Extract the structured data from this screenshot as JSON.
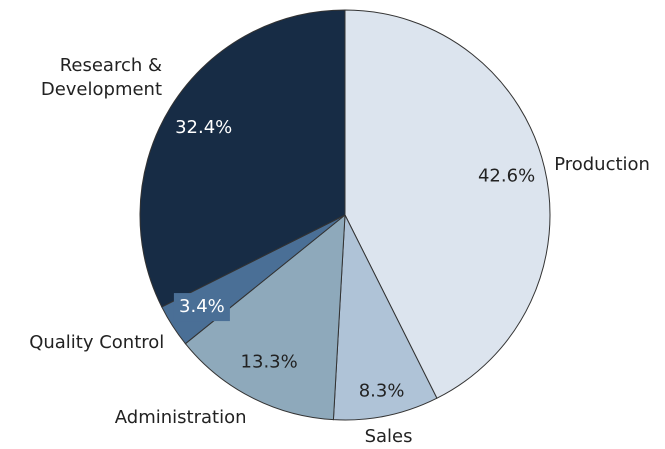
{
  "chart_data": {
    "type": "pie",
    "categories": [
      "Production",
      "Sales",
      "Administration",
      "Quality Control",
      "Research & Development"
    ],
    "values": [
      42.6,
      8.3,
      13.3,
      3.4,
      32.4
    ],
    "value_labels": [
      "42.6%",
      "8.3%",
      "13.3%",
      "3.4%",
      "32.4%"
    ],
    "colors": [
      "#dce4ee",
      "#afc3d7",
      "#8ea9bb",
      "#4a6f96",
      "#172c45"
    ]
  }
}
